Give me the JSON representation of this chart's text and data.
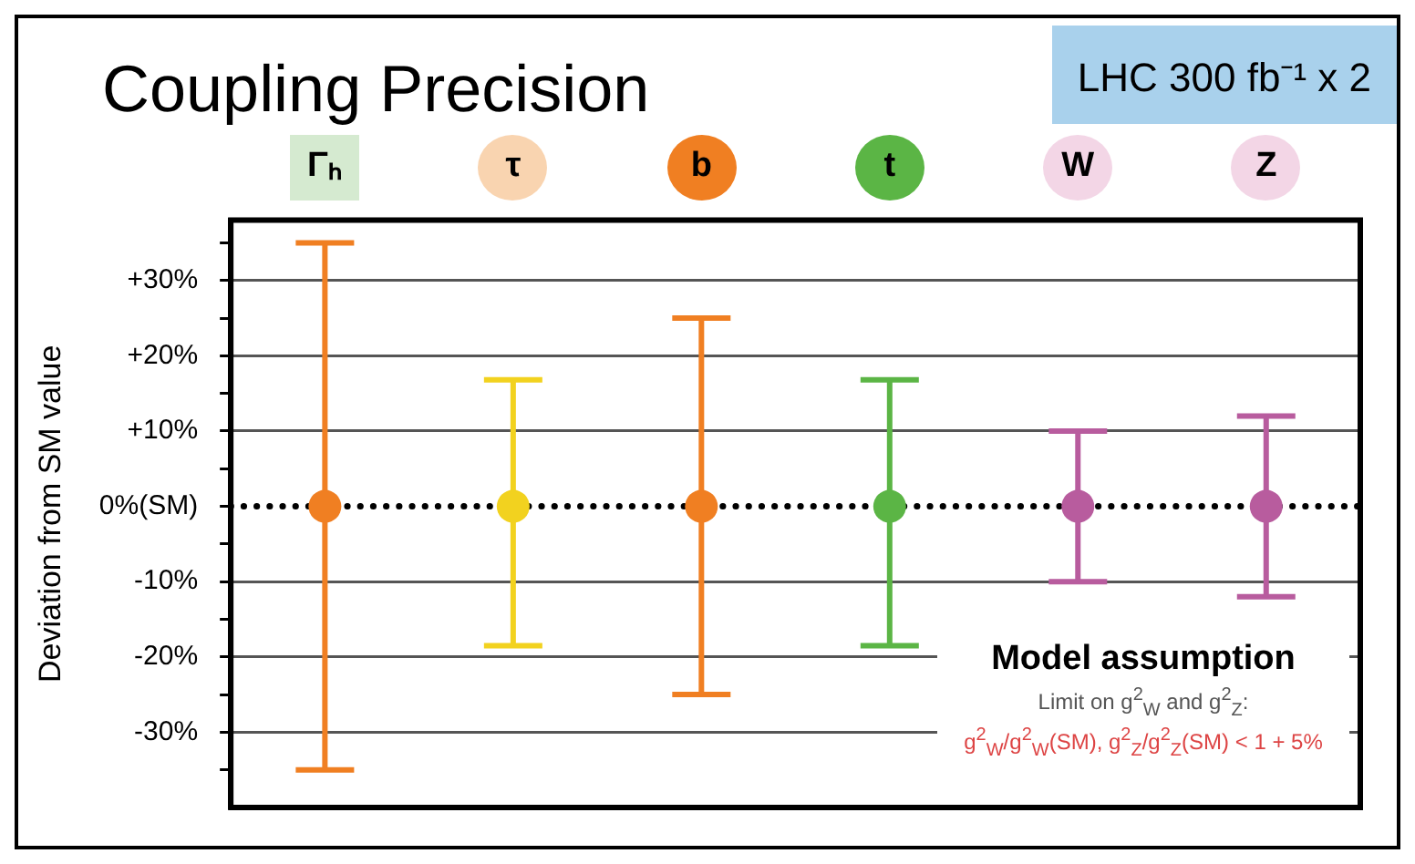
{
  "chart_data": {
    "type": "scatter",
    "title": "Coupling Precision",
    "subtitle": "LHC 300 fb⁻¹ x 2",
    "ylabel": "Deviation from SM value",
    "categories": [
      "Γₕ",
      "τ",
      "b",
      "t",
      "W",
      "Z"
    ],
    "values": [
      0,
      0,
      0,
      0,
      0,
      0
    ],
    "errors": [
      [
        -35,
        35
      ],
      [
        -18.5,
        16.8
      ],
      [
        -25,
        25
      ],
      [
        -18.5,
        16.8
      ],
      [
        -10,
        10
      ],
      [
        -12,
        12
      ]
    ],
    "colors": [
      "#f07f22",
      "#f2d21f",
      "#f07f22",
      "#5bb545",
      "#b85c9e",
      "#b85c9e"
    ],
    "marker": "circle",
    "ylim": [
      -40,
      38
    ],
    "yticks": [
      {
        "value": -35,
        "label": null
      },
      {
        "value": -30,
        "label": "-30%"
      },
      {
        "value": -25,
        "label": null
      },
      {
        "value": -20,
        "label": "-20%"
      },
      {
        "value": -15,
        "label": null
      },
      {
        "value": -10,
        "label": "-10%"
      },
      {
        "value": -5,
        "label": null
      },
      {
        "value": 0,
        "label": "0%(SM)"
      },
      {
        "value": 5,
        "label": null
      },
      {
        "value": 10,
        "label": "+10%"
      },
      {
        "value": 15,
        "label": null
      },
      {
        "value": 20,
        "label": "+20%"
      },
      {
        "value": 25,
        "label": null
      },
      {
        "value": 30,
        "label": "+30%"
      },
      {
        "value": 35,
        "label": null
      }
    ],
    "grid": "y",
    "legend": false,
    "ref_lines": [
      {
        "axis": "y",
        "value": 0,
        "color": "#000000",
        "line_style": "dotted"
      }
    ],
    "annotations": [
      "Model assumption",
      "Limit on g$^{2}$$_{W}$ and g$^{2}$$_{Z}$:",
      "g$^{2}$$_{W}$/g$^{2}$$_{W}$(SM), g$^{2}$$_{Z}$/g$^{2}$$_{Z}$(SM) < 1 + 5%"
    ]
  }
}
